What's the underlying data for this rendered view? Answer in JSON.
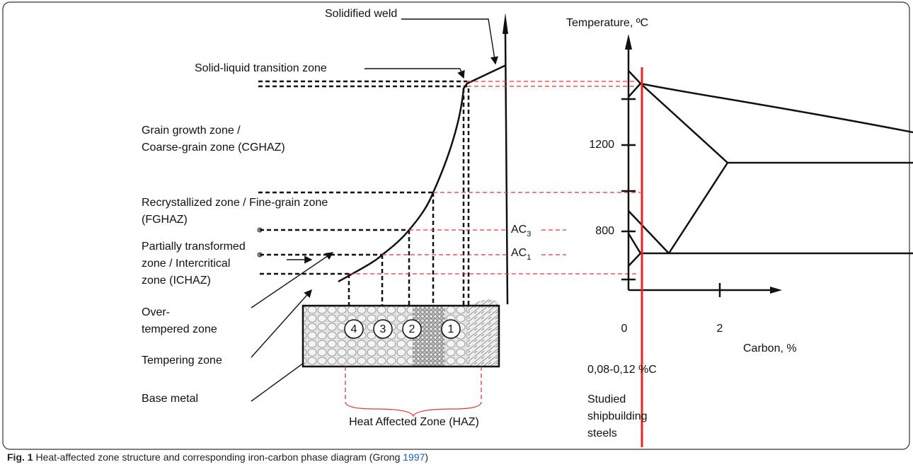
{
  "figure": {
    "zones": [
      {
        "lines": [
          "Solidified weld"
        ]
      },
      {
        "lines": [
          "Solid-liquid transition zone"
        ]
      },
      {
        "lines": [
          "Grain growth zone /",
          "Coarse-grain zone (CGHAZ)"
        ]
      },
      {
        "lines": [
          "Recrystallized zone / Fine-grain zone",
          "(FGHAZ)"
        ]
      },
      {
        "lines": [
          "Partially transformed",
          "zone / Intercritical",
          "zone (ICHAZ)"
        ]
      },
      {
        "lines": [
          "Over-",
          "tempered zone"
        ]
      },
      {
        "lines": [
          "Tempering zone"
        ]
      },
      {
        "lines": [
          "Base metal"
        ]
      }
    ],
    "zone_numbers": [
      "4",
      "3",
      "2",
      "1"
    ],
    "haz_label": "Heat Affected Zone (HAZ)",
    "phase_diagram": {
      "y_axis_label": "Temperature, ºC",
      "x_axis_label": "Carbon, %",
      "y_ticks": [
        "1200",
        "800"
      ],
      "x_ticks": [
        "0",
        "2"
      ],
      "ac3": {
        "base": "AC",
        "sub": "3"
      },
      "ac1": {
        "base": "AC",
        "sub": "1"
      },
      "steel_range": "0,08-0,12 %C",
      "steel_note": [
        "Studied",
        "shipbuilding",
        "steels"
      ]
    },
    "caption": {
      "label": "Fig. 1",
      "text_before": " Heat-affected zone structure and corresponding iron-carbon phase diagram (Grong ",
      "ref": "1997",
      "text_after": ")"
    }
  }
}
